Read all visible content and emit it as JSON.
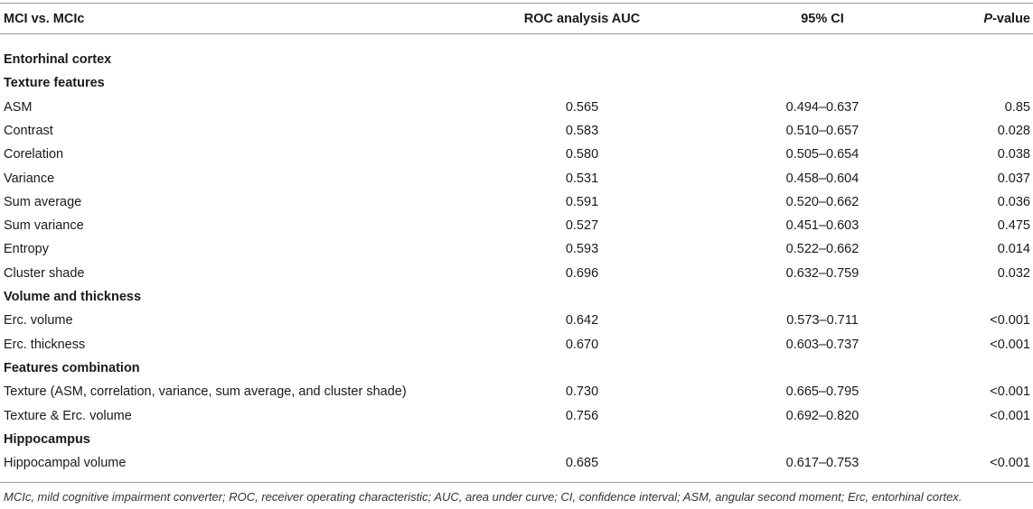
{
  "header": {
    "col_label": "MCI vs. MCIc",
    "col_auc": "ROC analysis AUC",
    "col_ci": "95% CI",
    "col_p_italic": "P",
    "col_p_rest": "-value"
  },
  "rows": [
    {
      "type": "section",
      "label": "Entorhinal cortex"
    },
    {
      "type": "section",
      "label": "Texture features"
    },
    {
      "type": "data",
      "label": "ASM",
      "auc": "0.565",
      "ci": "0.494–0.637",
      "p": "0.85"
    },
    {
      "type": "data",
      "label": "Contrast",
      "auc": "0.583",
      "ci": "0.510–0.657",
      "p": "0.028"
    },
    {
      "type": "data",
      "label": "Corelation",
      "auc": "0.580",
      "ci": "0.505–0.654",
      "p": "0.038"
    },
    {
      "type": "data",
      "label": "Variance",
      "auc": "0.531",
      "ci": "0.458–0.604",
      "p": "0.037"
    },
    {
      "type": "data",
      "label": "Sum average",
      "auc": "0.591",
      "ci": "0.520–0.662",
      "p": "0.036"
    },
    {
      "type": "data",
      "label": "Sum variance",
      "auc": "0.527",
      "ci": "0.451–0.603",
      "p": "0.475"
    },
    {
      "type": "data",
      "label": "Entropy",
      "auc": "0.593",
      "ci": "0.522–0.662",
      "p": "0.014"
    },
    {
      "type": "data",
      "label": "Cluster shade",
      "auc": "0.696",
      "ci": "0.632–0.759",
      "p": "0.032"
    },
    {
      "type": "section",
      "label": "Volume and thickness"
    },
    {
      "type": "data",
      "label": "Erc. volume",
      "auc": "0.642",
      "ci": "0.573–0.711",
      "p": "<0.001"
    },
    {
      "type": "data",
      "label": "Erc. thickness",
      "auc": "0.670",
      "ci": "0.603–0.737",
      "p": "<0.001"
    },
    {
      "type": "section",
      "label": "Features combination"
    },
    {
      "type": "data",
      "label": "Texture (ASM, correlation, variance, sum average, and cluster shade)",
      "auc": "0.730",
      "ci": "0.665–0.795",
      "p": "<0.001"
    },
    {
      "type": "data",
      "label": "Texture & Erc. volume",
      "auc": "0.756",
      "ci": "0.692–0.820",
      "p": "<0.001"
    },
    {
      "type": "section",
      "label": "Hippocampus"
    },
    {
      "type": "data",
      "label": "Hippocampal volume",
      "auc": "0.685",
      "ci": "0.617–0.753",
      "p": "<0.001"
    }
  ],
  "footnote": "MCIc, mild cognitive impairment converter; ROC, receiver operating characteristic; AUC, area under curve; CI, confidence interval; ASM, angular second moment; Erc, entorhinal cortex."
}
